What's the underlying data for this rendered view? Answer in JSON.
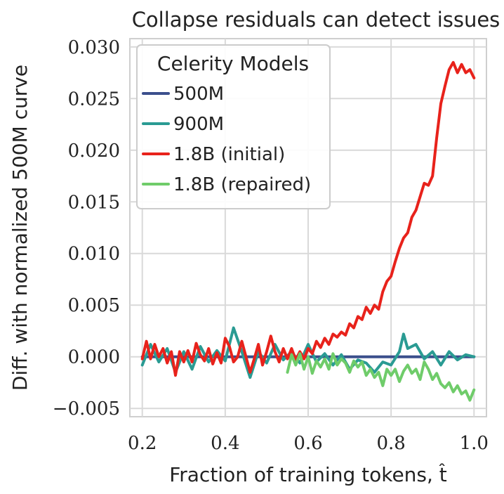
{
  "chart_data": {
    "type": "line",
    "title": "Collapse residuals can detect issues",
    "xlabel": "Fraction of training tokens, t̂",
    "ylabel": "Diff. with normalized 500M curve",
    "xlim": [
      0.17,
      1.03
    ],
    "ylim": [
      -0.0058,
      0.0308
    ],
    "xticks": [
      0.2,
      0.4,
      0.6,
      0.8,
      1.0
    ],
    "xtick_labels": [
      "0.2",
      "0.4",
      "0.6",
      "0.8",
      "1.0"
    ],
    "yticks": [
      -0.005,
      0.0,
      0.005,
      0.01,
      0.015,
      0.02,
      0.025,
      0.03
    ],
    "ytick_labels": [
      "−0.005",
      "0.000",
      "0.005",
      "0.010",
      "0.015",
      "0.020",
      "0.025",
      "0.030"
    ],
    "grid": true,
    "legend": {
      "title": "Celerity Models",
      "placement": "top-left"
    },
    "series": [
      {
        "name": "500M",
        "color": "#3b4f8c",
        "points": [
          [
            0.2,
            0.0
          ],
          [
            1.0,
            0.0
          ]
        ]
      },
      {
        "name": "900M",
        "color": "#2a9b93",
        "points": [
          [
            0.2,
            -0.0008
          ],
          [
            0.22,
            0.0012
          ],
          [
            0.24,
            -0.0005
          ],
          [
            0.26,
            0.0008
          ],
          [
            0.28,
            -0.0015
          ],
          [
            0.3,
            0.0005
          ],
          [
            0.32,
            -0.0012
          ],
          [
            0.34,
            0.001
          ],
          [
            0.36,
            -0.0005
          ],
          [
            0.38,
            0.0006
          ],
          [
            0.4,
            -0.0004
          ],
          [
            0.42,
            0.0028
          ],
          [
            0.44,
            0.0005
          ],
          [
            0.46,
            -0.002
          ],
          [
            0.48,
            0.0005
          ],
          [
            0.5,
            -0.0006
          ],
          [
            0.52,
            0.0012
          ],
          [
            0.54,
            -0.0003
          ],
          [
            0.56,
            0.0005
          ],
          [
            0.58,
            -0.0006
          ],
          [
            0.6,
            0.0012
          ],
          [
            0.62,
            -0.0005
          ],
          [
            0.64,
            0.0003
          ],
          [
            0.66,
            -0.0008
          ],
          [
            0.68,
            0.0002
          ],
          [
            0.7,
            -0.0012
          ],
          [
            0.72,
            -0.0003
          ],
          [
            0.74,
            -0.0006
          ],
          [
            0.76,
            -0.0015
          ],
          [
            0.78,
            -0.0005
          ],
          [
            0.8,
            -0.0008
          ],
          [
            0.82,
            0.0005
          ],
          [
            0.83,
            0.0022
          ],
          [
            0.84,
            0.0008
          ],
          [
            0.86,
            0.0012
          ],
          [
            0.88,
            -0.0002
          ],
          [
            0.9,
            0.0005
          ],
          [
            0.92,
            -0.0008
          ],
          [
            0.94,
            0.0005
          ],
          [
            0.96,
            -0.0003
          ],
          [
            0.98,
            0.0002
          ],
          [
            1.0,
            0.0
          ]
        ]
      },
      {
        "name": "1.8B (initial)",
        "color": "#e8221b",
        "points": [
          [
            0.2,
            -0.0002
          ],
          [
            0.21,
            0.0015
          ],
          [
            0.22,
            -0.0002
          ],
          [
            0.23,
            0.0012
          ],
          [
            0.24,
            0.0
          ],
          [
            0.25,
            0.0008
          ],
          [
            0.26,
            -0.0006
          ],
          [
            0.27,
            0.0005
          ],
          [
            0.28,
            -0.0018
          ],
          [
            0.29,
            0.0005
          ],
          [
            0.3,
            -0.0005
          ],
          [
            0.31,
            0.0006
          ],
          [
            0.32,
            -0.0005
          ],
          [
            0.33,
            0.0013
          ],
          [
            0.34,
            0.0002
          ],
          [
            0.35,
            -0.0004
          ],
          [
            0.36,
            0.0008
          ],
          [
            0.37,
            -0.0007
          ],
          [
            0.38,
            0.0004
          ],
          [
            0.39,
            -0.0006
          ],
          [
            0.4,
            0.0018
          ],
          [
            0.41,
            0.001
          ],
          [
            0.42,
            -0.0005
          ],
          [
            0.43,
            0.0
          ],
          [
            0.44,
            0.0015
          ],
          [
            0.45,
            0.0
          ],
          [
            0.46,
            -0.0015
          ],
          [
            0.47,
            -0.0002
          ],
          [
            0.48,
            0.0012
          ],
          [
            0.49,
            -0.0008
          ],
          [
            0.5,
            0.0005
          ],
          [
            0.51,
            0.002
          ],
          [
            0.52,
            0.0005
          ],
          [
            0.53,
            -0.0005
          ],
          [
            0.54,
            0.0008
          ],
          [
            0.55,
            -0.0002
          ],
          [
            0.56,
            0.0008
          ],
          [
            0.57,
            -0.0003
          ],
          [
            0.58,
            0.0005
          ],
          [
            0.59,
            -0.0002
          ],
          [
            0.6,
            0.0008
          ],
          [
            0.61,
            0.0003
          ],
          [
            0.62,
            0.0015
          ],
          [
            0.63,
            0.0009
          ],
          [
            0.64,
            0.0018
          ],
          [
            0.65,
            0.0012
          ],
          [
            0.66,
            0.0022
          ],
          [
            0.67,
            0.0019
          ],
          [
            0.68,
            0.0024
          ],
          [
            0.69,
            0.0021
          ],
          [
            0.7,
            0.0032
          ],
          [
            0.71,
            0.0028
          ],
          [
            0.72,
            0.0039
          ],
          [
            0.73,
            0.0036
          ],
          [
            0.74,
            0.0048
          ],
          [
            0.75,
            0.0042
          ],
          [
            0.76,
            0.005
          ],
          [
            0.77,
            0.0046
          ],
          [
            0.78,
            0.0063
          ],
          [
            0.79,
            0.0073
          ],
          [
            0.8,
            0.0078
          ],
          [
            0.81,
            0.0092
          ],
          [
            0.82,
            0.0105
          ],
          [
            0.83,
            0.0115
          ],
          [
            0.84,
            0.012
          ],
          [
            0.85,
            0.0135
          ],
          [
            0.86,
            0.0142
          ],
          [
            0.87,
            0.0155
          ],
          [
            0.88,
            0.0168
          ],
          [
            0.89,
            0.0166
          ],
          [
            0.9,
            0.0175
          ],
          [
            0.91,
            0.0212
          ],
          [
            0.92,
            0.0245
          ],
          [
            0.93,
            0.0262
          ],
          [
            0.94,
            0.0278
          ],
          [
            0.95,
            0.0285
          ],
          [
            0.96,
            0.0275
          ],
          [
            0.97,
            0.0283
          ],
          [
            0.98,
            0.0275
          ],
          [
            0.99,
            0.0278
          ],
          [
            1.0,
            0.027
          ]
        ]
      },
      {
        "name": "1.8B (repaired)",
        "color": "#6fcc6a",
        "points": [
          [
            0.55,
            -0.0015
          ],
          [
            0.56,
            0.0002
          ],
          [
            0.57,
            -0.0008
          ],
          [
            0.58,
            0.0003
          ],
          [
            0.59,
            -0.0012
          ],
          [
            0.6,
            0.0
          ],
          [
            0.61,
            -0.0016
          ],
          [
            0.62,
            -0.0004
          ],
          [
            0.63,
            -0.001
          ],
          [
            0.64,
            -0.0002
          ],
          [
            0.65,
            -0.0012
          ],
          [
            0.66,
            0.0003
          ],
          [
            0.67,
            -0.0008
          ],
          [
            0.68,
            -0.0002
          ],
          [
            0.69,
            -0.0006
          ],
          [
            0.7,
            -0.0015
          ],
          [
            0.71,
            -0.0004
          ],
          [
            0.72,
            -0.001
          ],
          [
            0.73,
            -0.0005
          ],
          [
            0.74,
            -0.0018
          ],
          [
            0.75,
            -0.0012
          ],
          [
            0.76,
            -0.002
          ],
          [
            0.77,
            -0.0015
          ],
          [
            0.78,
            -0.0028
          ],
          [
            0.79,
            -0.0012
          ],
          [
            0.8,
            -0.0018
          ],
          [
            0.81,
            -0.0012
          ],
          [
            0.82,
            -0.0024
          ],
          [
            0.83,
            -0.0014
          ],
          [
            0.84,
            -0.0008
          ],
          [
            0.85,
            -0.0016
          ],
          [
            0.86,
            -0.0012
          ],
          [
            0.87,
            -0.0022
          ],
          [
            0.88,
            -0.0005
          ],
          [
            0.89,
            -0.0012
          ],
          [
            0.9,
            -0.0022
          ],
          [
            0.91,
            -0.0016
          ],
          [
            0.92,
            -0.0026
          ],
          [
            0.93,
            -0.003
          ],
          [
            0.94,
            -0.0025
          ],
          [
            0.95,
            -0.0034
          ],
          [
            0.96,
            -0.0028
          ],
          [
            0.97,
            -0.0036
          ],
          [
            0.98,
            -0.0033
          ],
          [
            0.99,
            -0.0042
          ],
          [
            1.0,
            -0.0032
          ]
        ]
      }
    ]
  }
}
